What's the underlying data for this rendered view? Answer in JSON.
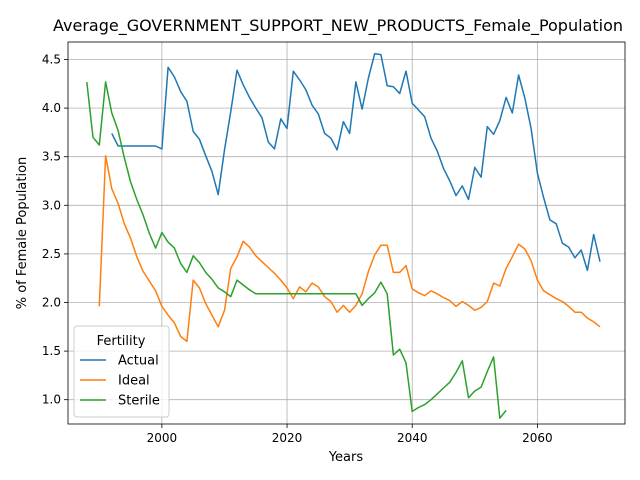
{
  "chart_data": {
    "type": "line",
    "title": "Average_GOVERNMENT_SUPPORT_NEW_PRODUCTS_Female_Population",
    "xlabel": "Years",
    "ylabel": "% of Female Population",
    "xlim": [
      1985,
      2074
    ],
    "ylim": [
      0.75,
      4.68
    ],
    "x_ticks": [
      2000,
      2020,
      2040,
      2060
    ],
    "y_ticks": [
      1.0,
      1.5,
      2.0,
      2.5,
      3.0,
      3.5,
      4.0,
      4.5
    ],
    "grid": true,
    "legend": {
      "title": "Fertility",
      "position": "lower left"
    },
    "series": [
      {
        "name": "Actual",
        "color": "#1f77b4",
        "points": [
          [
            1992,
            3.74
          ],
          [
            1993,
            3.61
          ],
          [
            1994,
            3.61
          ],
          [
            1995,
            3.61
          ],
          [
            1996,
            3.61
          ],
          [
            1997,
            3.61
          ],
          [
            1998,
            3.61
          ],
          [
            1999,
            3.61
          ],
          [
            2000,
            3.58
          ],
          [
            2001,
            4.42
          ],
          [
            2002,
            4.32
          ],
          [
            2003,
            4.17
          ],
          [
            2004,
            4.07
          ],
          [
            2005,
            3.76
          ],
          [
            2006,
            3.68
          ],
          [
            2007,
            3.51
          ],
          [
            2008,
            3.35
          ],
          [
            2009,
            3.11
          ],
          [
            2010,
            3.57
          ],
          [
            2011,
            3.96
          ],
          [
            2012,
            4.39
          ],
          [
            2013,
            4.24
          ],
          [
            2014,
            4.11
          ],
          [
            2015,
            4.0
          ],
          [
            2016,
            3.9
          ],
          [
            2017,
            3.65
          ],
          [
            2018,
            3.58
          ],
          [
            2019,
            3.89
          ],
          [
            2020,
            3.79
          ],
          [
            2021,
            4.38
          ],
          [
            2022,
            4.29
          ],
          [
            2023,
            4.19
          ],
          [
            2024,
            4.03
          ],
          [
            2025,
            3.94
          ],
          [
            2026,
            3.74
          ],
          [
            2027,
            3.69
          ],
          [
            2028,
            3.57
          ],
          [
            2029,
            3.86
          ],
          [
            2030,
            3.74
          ],
          [
            2031,
            4.27
          ],
          [
            2032,
            3.99
          ],
          [
            2033,
            4.31
          ],
          [
            2034,
            4.56
          ],
          [
            2035,
            4.55
          ],
          [
            2036,
            4.23
          ],
          [
            2037,
            4.22
          ],
          [
            2038,
            4.15
          ],
          [
            2039,
            4.38
          ],
          [
            2040,
            4.05
          ],
          [
            2041,
            3.98
          ],
          [
            2042,
            3.91
          ],
          [
            2043,
            3.69
          ],
          [
            2044,
            3.56
          ],
          [
            2045,
            3.38
          ],
          [
            2046,
            3.25
          ],
          [
            2047,
            3.1
          ],
          [
            2048,
            3.2
          ],
          [
            2049,
            3.06
          ],
          [
            2050,
            3.39
          ],
          [
            2051,
            3.29
          ],
          [
            2052,
            3.81
          ],
          [
            2053,
            3.73
          ],
          [
            2054,
            3.87
          ],
          [
            2055,
            4.11
          ],
          [
            2056,
            3.95
          ],
          [
            2057,
            4.34
          ],
          [
            2058,
            4.1
          ],
          [
            2059,
            3.79
          ],
          [
            2060,
            3.33
          ],
          [
            2061,
            3.08
          ],
          [
            2062,
            2.85
          ],
          [
            2063,
            2.81
          ],
          [
            2064,
            2.61
          ],
          [
            2065,
            2.57
          ],
          [
            2066,
            2.46
          ],
          [
            2067,
            2.54
          ],
          [
            2068,
            2.33
          ],
          [
            2069,
            2.7
          ],
          [
            2070,
            2.42
          ]
        ]
      },
      {
        "name": "Ideal",
        "color": "#ff7f0e",
        "points": [
          [
            1990,
            1.96
          ],
          [
            1991,
            3.51
          ],
          [
            1992,
            3.17
          ],
          [
            1993,
            3.02
          ],
          [
            1994,
            2.81
          ],
          [
            1995,
            2.66
          ],
          [
            1996,
            2.47
          ],
          [
            1997,
            2.32
          ],
          [
            1998,
            2.22
          ],
          [
            1999,
            2.12
          ],
          [
            2000,
            1.96
          ],
          [
            2001,
            1.87
          ],
          [
            2002,
            1.79
          ],
          [
            2003,
            1.65
          ],
          [
            2004,
            1.6
          ],
          [
            2005,
            2.23
          ],
          [
            2006,
            2.15
          ],
          [
            2007,
            1.99
          ],
          [
            2008,
            1.87
          ],
          [
            2009,
            1.75
          ],
          [
            2010,
            1.92
          ],
          [
            2011,
            2.35
          ],
          [
            2012,
            2.47
          ],
          [
            2013,
            2.63
          ],
          [
            2014,
            2.57
          ],
          [
            2015,
            2.48
          ],
          [
            2016,
            2.42
          ],
          [
            2017,
            2.36
          ],
          [
            2018,
            2.3
          ],
          [
            2019,
            2.23
          ],
          [
            2020,
            2.15
          ],
          [
            2021,
            2.04
          ],
          [
            2022,
            2.16
          ],
          [
            2023,
            2.11
          ],
          [
            2024,
            2.2
          ],
          [
            2025,
            2.16
          ],
          [
            2026,
            2.06
          ],
          [
            2027,
            2.01
          ],
          [
            2028,
            1.9
          ],
          [
            2029,
            1.97
          ],
          [
            2030,
            1.9
          ],
          [
            2031,
            1.97
          ],
          [
            2032,
            2.09
          ],
          [
            2033,
            2.32
          ],
          [
            2034,
            2.49
          ],
          [
            2035,
            2.59
          ],
          [
            2036,
            2.59
          ],
          [
            2037,
            2.31
          ],
          [
            2038,
            2.31
          ],
          [
            2039,
            2.38
          ],
          [
            2040,
            2.14
          ],
          [
            2041,
            2.1
          ],
          [
            2042,
            2.07
          ],
          [
            2043,
            2.12
          ],
          [
            2044,
            2.09
          ],
          [
            2045,
            2.05
          ],
          [
            2046,
            2.02
          ],
          [
            2047,
            1.96
          ],
          [
            2048,
            2.01
          ],
          [
            2049,
            1.97
          ],
          [
            2050,
            1.92
          ],
          [
            2051,
            1.95
          ],
          [
            2052,
            2.01
          ],
          [
            2053,
            2.2
          ],
          [
            2054,
            2.17
          ],
          [
            2055,
            2.35
          ],
          [
            2056,
            2.47
          ],
          [
            2057,
            2.6
          ],
          [
            2058,
            2.55
          ],
          [
            2059,
            2.43
          ],
          [
            2060,
            2.23
          ],
          [
            2061,
            2.12
          ],
          [
            2062,
            2.08
          ],
          [
            2063,
            2.04
          ],
          [
            2064,
            2.01
          ],
          [
            2065,
            1.96
          ],
          [
            2066,
            1.9
          ],
          [
            2067,
            1.9
          ],
          [
            2068,
            1.84
          ],
          [
            2069,
            1.8
          ],
          [
            2070,
            1.75
          ]
        ]
      },
      {
        "name": "Sterile",
        "color": "#2ca02c",
        "points": [
          [
            1988,
            4.27
          ],
          [
            1989,
            3.7
          ],
          [
            1990,
            3.62
          ],
          [
            1991,
            4.27
          ],
          [
            1992,
            3.95
          ],
          [
            1993,
            3.77
          ],
          [
            1994,
            3.49
          ],
          [
            1995,
            3.24
          ],
          [
            1996,
            3.06
          ],
          [
            1997,
            2.9
          ],
          [
            1998,
            2.71
          ],
          [
            1999,
            2.56
          ],
          [
            2000,
            2.72
          ],
          [
            2001,
            2.62
          ],
          [
            2002,
            2.56
          ],
          [
            2003,
            2.4
          ],
          [
            2004,
            2.31
          ],
          [
            2005,
            2.48
          ],
          [
            2006,
            2.41
          ],
          [
            2007,
            2.31
          ],
          [
            2008,
            2.24
          ],
          [
            2009,
            2.15
          ],
          [
            2010,
            2.11
          ],
          [
            2011,
            2.06
          ],
          [
            2012,
            2.23
          ],
          [
            2013,
            2.18
          ],
          [
            2014,
            2.13
          ],
          [
            2015,
            2.09
          ],
          [
            2016,
            2.09
          ],
          [
            2017,
            2.09
          ],
          [
            2018,
            2.09
          ],
          [
            2019,
            2.09
          ],
          [
            2020,
            2.09
          ],
          [
            2021,
            2.09
          ],
          [
            2022,
            2.09
          ],
          [
            2023,
            2.09
          ],
          [
            2024,
            2.09
          ],
          [
            2025,
            2.09
          ],
          [
            2026,
            2.09
          ],
          [
            2027,
            2.09
          ],
          [
            2028,
            2.09
          ],
          [
            2029,
            2.09
          ],
          [
            2030,
            2.09
          ],
          [
            2031,
            2.09
          ],
          [
            2032,
            1.97
          ],
          [
            2033,
            2.04
          ],
          [
            2034,
            2.1
          ],
          [
            2035,
            2.21
          ],
          [
            2036,
            2.09
          ],
          [
            2037,
            1.46
          ],
          [
            2038,
            1.52
          ],
          [
            2039,
            1.38
          ],
          [
            2040,
            0.88
          ],
          [
            2041,
            0.92
          ],
          [
            2042,
            0.95
          ],
          [
            2043,
            1.0
          ],
          [
            2044,
            1.06
          ],
          [
            2045,
            1.12
          ],
          [
            2046,
            1.18
          ],
          [
            2047,
            1.28
          ],
          [
            2048,
            1.4
          ],
          [
            2049,
            1.02
          ],
          [
            2050,
            1.09
          ],
          [
            2051,
            1.13
          ],
          [
            2052,
            1.29
          ],
          [
            2053,
            1.44
          ],
          [
            2054,
            0.81
          ],
          [
            2055,
            0.89
          ]
        ]
      }
    ]
  }
}
